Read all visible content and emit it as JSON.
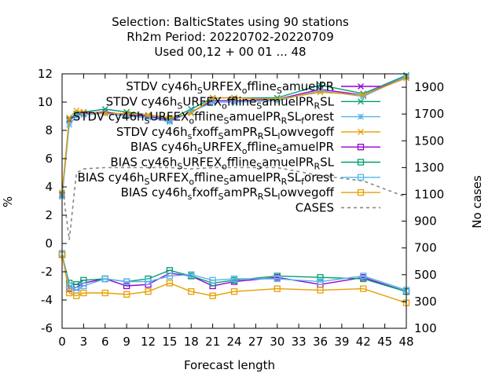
{
  "title_lines": [
    "Selection: BalticStates using    90 stations",
    "Rh2m   Period: 20220702-20220709",
    "Used  00,12  + 00 01 ... 48"
  ],
  "chart_data": {
    "type": "line",
    "xlabel": "Forecast length",
    "ylabel": "%",
    "y2label": "No cases",
    "xlim": [
      0,
      48
    ],
    "ylim": [
      -6,
      12
    ],
    "y2lim": [
      100,
      2000
    ],
    "xticks": [
      0,
      3,
      6,
      9,
      12,
      15,
      18,
      21,
      24,
      27,
      30,
      33,
      36,
      39,
      42,
      45,
      48
    ],
    "yticks": [
      -6,
      -4,
      -2,
      0,
      2,
      4,
      6,
      8,
      10,
      12
    ],
    "y2ticks": [
      100,
      300,
      500,
      700,
      900,
      1100,
      1300,
      1500,
      1700,
      1900
    ],
    "legend_position": "top-right",
    "x": [
      0,
      1,
      2,
      3,
      6,
      9,
      12,
      15,
      18,
      21,
      24,
      30,
      36,
      42,
      48
    ],
    "series": [
      {
        "name": "STDV cy46h_SURFEX_offline_SamuelPR",
        "axis": "y",
        "color": "#9400d3",
        "marker": "x",
        "values": [
          3.4,
          8.7,
          9.1,
          9.2,
          9.3,
          9.1,
          9.0,
          8.7,
          9.3,
          10.1,
          10.1,
          10.2,
          10.9,
          10.5,
          11.8
        ]
      },
      {
        "name": "STDV cy46h_SURFEX_offline_SamuelPR_RSL",
        "axis": "y",
        "color": "#009e73",
        "marker": "x",
        "values": [
          3.5,
          8.8,
          9.2,
          9.3,
          9.5,
          9.3,
          9.1,
          8.8,
          9.5,
          10.3,
          10.3,
          10.3,
          11.2,
          10.6,
          11.9
        ]
      },
      {
        "name": "STDV cy46h_SURFEX_offline_SamuelPR_RSL_forest",
        "axis": "y",
        "color": "#56b4e9",
        "marker": "star",
        "values": [
          3.3,
          8.4,
          9.0,
          9.1,
          9.2,
          9.0,
          8.9,
          8.6,
          9.3,
          10.0,
          10.0,
          10.1,
          10.8,
          10.4,
          11.8
        ]
      },
      {
        "name": "STDV cy46h_sfxoff_SamPR_RSL_lowvegoff",
        "axis": "y",
        "color": "#e69f00",
        "marker": "x",
        "values": [
          3.6,
          8.9,
          9.4,
          9.3,
          9.2,
          9.2,
          9.1,
          8.9,
          9.2,
          10.3,
          10.3,
          10.2,
          10.7,
          10.5,
          11.7
        ]
      },
      {
        "name": "BIAS cy46h_SURFEX_offline_SamuelPR",
        "axis": "y",
        "color": "#9400d3",
        "marker": "square",
        "values": [
          -0.8,
          -3.2,
          -3.1,
          -2.8,
          -2.5,
          -3.0,
          -2.9,
          -2.1,
          -2.3,
          -3.0,
          -2.7,
          -2.4,
          -2.9,
          -2.4,
          -3.4
        ]
      },
      {
        "name": "BIAS cy46h_SURFEX_offline_SamuelPR_RSL",
        "axis": "y",
        "color": "#009e73",
        "marker": "square",
        "values": [
          -0.8,
          -2.8,
          -2.9,
          -2.6,
          -2.5,
          -2.7,
          -2.5,
          -1.9,
          -2.3,
          -2.8,
          -2.6,
          -2.3,
          -2.4,
          -2.5,
          -3.4
        ]
      },
      {
        "name": "BIAS cy46h_SURFEX_offline_SamuelPR_RSL_forest",
        "axis": "y",
        "color": "#56b4e9",
        "marker": "square",
        "values": [
          -0.7,
          -3.0,
          -3.3,
          -3.0,
          -2.5,
          -2.7,
          -2.7,
          -2.3,
          -2.2,
          -2.6,
          -2.5,
          -2.5,
          -2.7,
          -2.3,
          -3.3
        ]
      },
      {
        "name": "BIAS cy46h_sfxoff_SamPR_RSL_lowvegoff",
        "axis": "y",
        "color": "#e69f00",
        "marker": "square",
        "values": [
          -0.8,
          -3.5,
          -3.7,
          -3.5,
          -3.5,
          -3.6,
          -3.4,
          -2.8,
          -3.4,
          -3.7,
          -3.4,
          -3.2,
          -3.3,
          -3.2,
          -4.2
        ]
      },
      {
        "name": "CASES",
        "axis": "y2",
        "color": "#888888",
        "marker": "none",
        "dash": true,
        "values": [
          1180,
          760,
          1260,
          1290,
          1300,
          1300,
          1300,
          1300,
          1290,
          1300,
          1300,
          1300,
          1240,
          1200,
          1080
        ]
      }
    ]
  },
  "legend": {
    "entries": [
      {
        "prefix": "STDV cy46h",
        "parts": [
          [
            "sub",
            "S"
          ],
          [
            "n",
            "URFEX"
          ],
          [
            "sub",
            "o"
          ],
          [
            "n",
            "ffline"
          ],
          [
            "sub",
            "S"
          ],
          [
            "n",
            "amuelPR"
          ]
        ]
      },
      {
        "prefix": "STDV cy46h",
        "parts": [
          [
            "sub",
            "S"
          ],
          [
            "n",
            "URFEX"
          ],
          [
            "sub",
            "o"
          ],
          [
            "n",
            "ffline"
          ],
          [
            "sub",
            "S"
          ],
          [
            "n",
            "amuelPR"
          ],
          [
            "sub",
            "R"
          ],
          [
            "n",
            "SL"
          ]
        ]
      },
      {
        "prefix": "STDV cy46h",
        "parts": [
          [
            "sub",
            "S"
          ],
          [
            "n",
            "URFEX"
          ],
          [
            "sub",
            "o"
          ],
          [
            "n",
            "ffline"
          ],
          [
            "sub",
            "S"
          ],
          [
            "n",
            "amuelPR"
          ],
          [
            "sub",
            "R"
          ],
          [
            "n",
            "SL"
          ],
          [
            "sub",
            "f"
          ],
          [
            "n",
            "orest"
          ]
        ]
      },
      {
        "prefix": "STDV cy46h",
        "parts": [
          [
            "sub",
            "s"
          ],
          [
            "n",
            "fxoff"
          ],
          [
            "sub",
            "S"
          ],
          [
            "n",
            "amPR"
          ],
          [
            "sub",
            "R"
          ],
          [
            "n",
            "SL"
          ],
          [
            "sub",
            "l"
          ],
          [
            "n",
            "owvegoff"
          ]
        ]
      },
      {
        "prefix": "BIAS cy46h",
        "parts": [
          [
            "sub",
            "S"
          ],
          [
            "n",
            "URFEX"
          ],
          [
            "sub",
            "o"
          ],
          [
            "n",
            "ffline"
          ],
          [
            "sub",
            "S"
          ],
          [
            "n",
            "amuelPR"
          ]
        ]
      },
      {
        "prefix": "BIAS cy46h",
        "parts": [
          [
            "sub",
            "S"
          ],
          [
            "n",
            "URFEX"
          ],
          [
            "sub",
            "o"
          ],
          [
            "n",
            "ffline"
          ],
          [
            "sub",
            "S"
          ],
          [
            "n",
            "amuelPR"
          ],
          [
            "sub",
            "R"
          ],
          [
            "n",
            "SL"
          ]
        ]
      },
      {
        "prefix": "BIAS cy46h",
        "parts": [
          [
            "sub",
            "S"
          ],
          [
            "n",
            "URFEX"
          ],
          [
            "sub",
            "o"
          ],
          [
            "n",
            "ffline"
          ],
          [
            "sub",
            "S"
          ],
          [
            "n",
            "amuelPR"
          ],
          [
            "sub",
            "R"
          ],
          [
            "n",
            "SL"
          ],
          [
            "sub",
            "f"
          ],
          [
            "n",
            "orest"
          ]
        ]
      },
      {
        "prefix": "BIAS cy46h",
        "parts": [
          [
            "sub",
            "s"
          ],
          [
            "n",
            "fxoff"
          ],
          [
            "sub",
            "S"
          ],
          [
            "n",
            "amPR"
          ],
          [
            "sub",
            "R"
          ],
          [
            "n",
            "SL"
          ],
          [
            "sub",
            "l"
          ],
          [
            "n",
            "owvegoff"
          ]
        ]
      },
      {
        "prefix": "CASES",
        "parts": []
      }
    ]
  }
}
